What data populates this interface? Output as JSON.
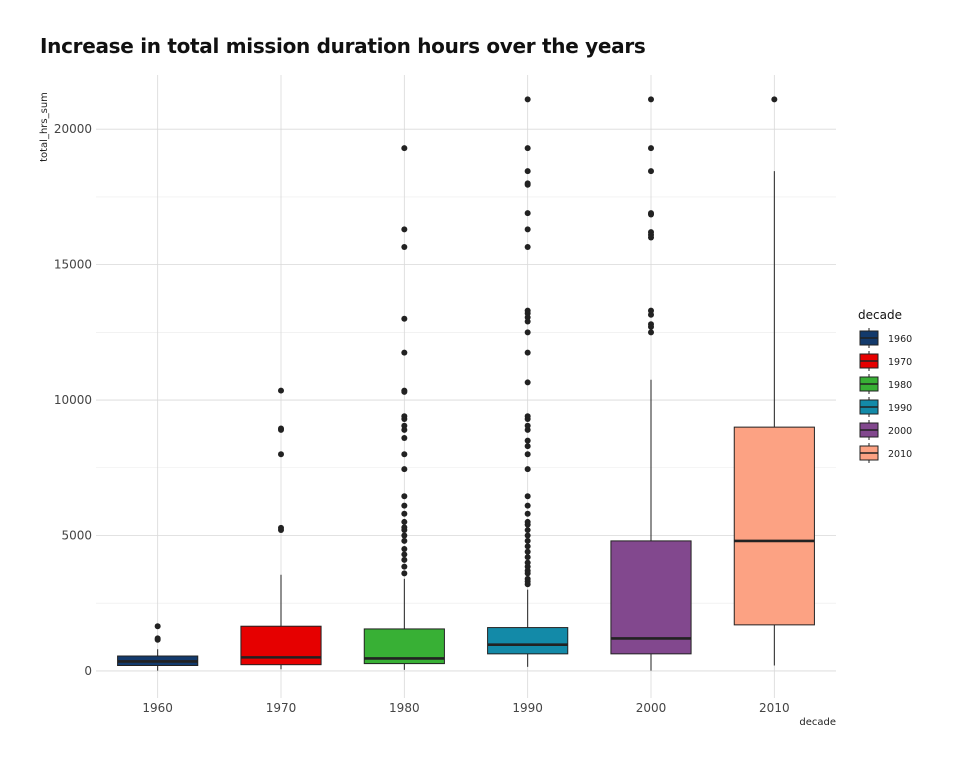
{
  "chart_data": {
    "type": "boxplot",
    "title": "Increase in total mission duration hours over the years",
    "xlabel": "decade",
    "ylabel": "total_hrs_sum",
    "ylim": [
      -1000,
      22000
    ],
    "yticks": [
      0,
      5000,
      10000,
      15000,
      20000
    ],
    "grid": true,
    "legend": {
      "title": "decade",
      "placement": "right"
    },
    "categories": [
      "1960",
      "1970",
      "1980",
      "1990",
      "2000",
      "2010"
    ],
    "colors": [
      "#133a6c",
      "#e60000",
      "#38b035",
      "#138aa8",
      "#82488e",
      "#fca283"
    ],
    "boxes": [
      {
        "decade": "1960",
        "min": 10,
        "q1": 200,
        "median": 350,
        "q3": 550,
        "max": 800,
        "outliers": [
          1150,
          1200,
          1650
        ]
      },
      {
        "decade": "1970",
        "min": 60,
        "q1": 230,
        "median": 500,
        "q3": 1650,
        "max": 3550,
        "outliers": [
          5200,
          5280,
          8000,
          8900,
          8950,
          10350
        ]
      },
      {
        "decade": "1980",
        "min": 40,
        "q1": 270,
        "median": 460,
        "q3": 1550,
        "max": 3400,
        "outliers": [
          3600,
          3850,
          4100,
          4300,
          4500,
          4800,
          5000,
          5200,
          5300,
          5500,
          5800,
          6100,
          6450,
          7450,
          8000,
          8600,
          8900,
          9050,
          9300,
          9400,
          10300,
          10350,
          11750,
          13000,
          15650,
          16300,
          19300
        ]
      },
      {
        "decade": "1990",
        "min": 150,
        "q1": 630,
        "median": 970,
        "q3": 1600,
        "max": 3000,
        "outliers": [
          3200,
          3300,
          3400,
          3600,
          3700,
          3850,
          4000,
          4200,
          4400,
          4600,
          4800,
          5000,
          5200,
          5400,
          5500,
          5800,
          6100,
          6450,
          7450,
          8000,
          8300,
          8500,
          8900,
          9050,
          9300,
          9400,
          10650,
          11750,
          12500,
          12900,
          13050,
          13200,
          13300,
          15650,
          16300,
          16900,
          17950,
          18000,
          18450,
          19300,
          21100
        ]
      },
      {
        "decade": "2000",
        "min": 10,
        "q1": 630,
        "median": 1200,
        "q3": 4800,
        "max": 10750,
        "outliers": [
          12500,
          12700,
          12800,
          13150,
          13300,
          16000,
          16100,
          16200,
          16850,
          16900,
          18450,
          19300,
          21100
        ]
      },
      {
        "decade": "2010",
        "min": 200,
        "q1": 1700,
        "median": 4800,
        "q3": 9000,
        "max": 18450,
        "outliers": [
          21100
        ]
      }
    ]
  }
}
